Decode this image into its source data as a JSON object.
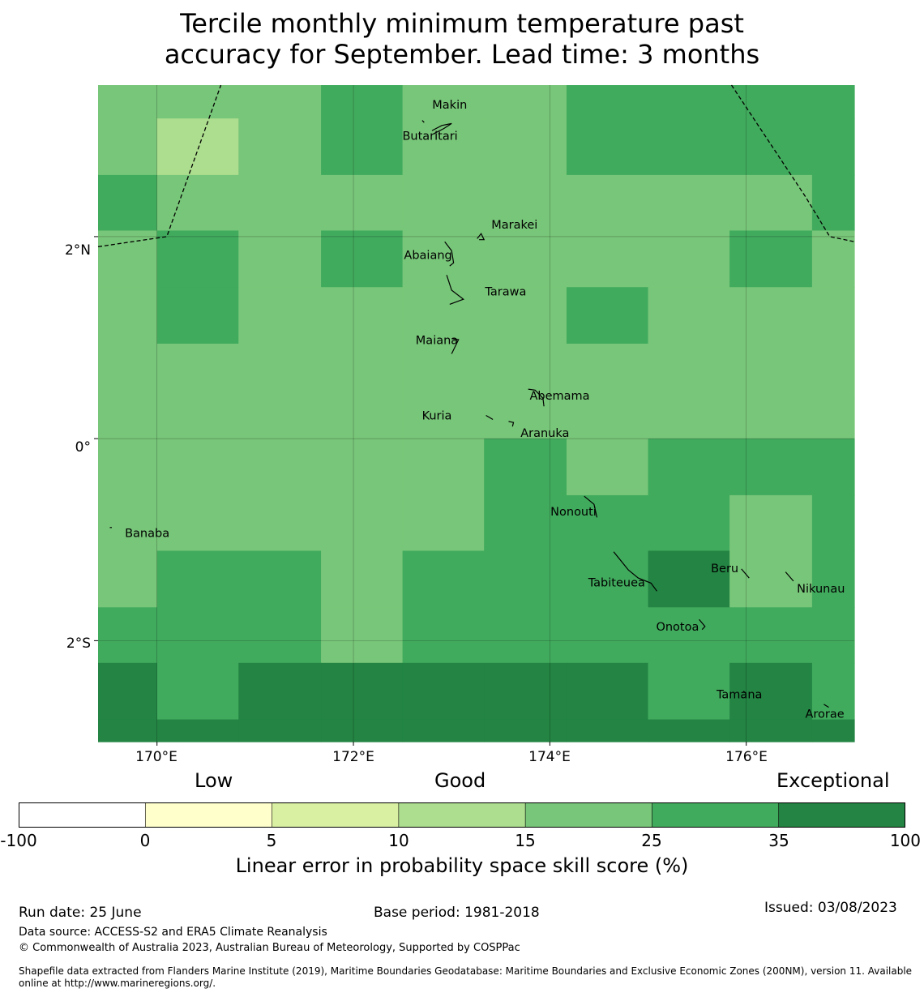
{
  "title_lines": [
    "Tercile monthly minimum temperature past",
    "accuracy for September. Lead time: 3 months"
  ],
  "map": {
    "lon_range": [
      169.4,
      177.1
    ],
    "lat_range": [
      -3.0,
      3.5
    ],
    "x_ticks": [
      {
        "value": 170,
        "label": "170°E"
      },
      {
        "value": 172,
        "label": "172°E"
      },
      {
        "value": 174,
        "label": "174°E"
      },
      {
        "value": 176,
        "label": "176°E"
      }
    ],
    "y_ticks": [
      {
        "value": 2,
        "label": "2°N"
      },
      {
        "value": 0,
        "label": "0°"
      },
      {
        "value": -2,
        "label": "2°S"
      }
    ],
    "grid": true,
    "class_colors": [
      "#ffffff",
      "#ffffcc",
      "#d9f0a3",
      "#addd8e",
      "#78c679",
      "#41ab5d",
      "#238443"
    ],
    "cell_columns_lon": [
      169.4,
      170.0,
      170.83,
      171.67,
      172.5,
      173.33,
      174.17,
      175.0,
      175.83,
      176.67,
      177.1
    ],
    "cell_rows_lat": [
      3.5,
      3.17,
      2.61,
      2.06,
      1.5,
      0.94,
      0.39,
      0,
      -0.56,
      -1.11,
      -1.67,
      -2.22,
      -2.78,
      -3.0
    ],
    "cell_classes": [
      [
        4,
        4,
        4,
        5,
        4,
        4,
        5,
        5,
        5,
        5
      ],
      [
        4,
        3,
        4,
        5,
        4,
        4,
        5,
        5,
        5,
        5
      ],
      [
        5,
        4,
        4,
        4,
        4,
        4,
        4,
        4,
        4,
        5
      ],
      [
        4,
        5,
        4,
        5,
        4,
        4,
        4,
        4,
        5,
        4
      ],
      [
        4,
        5,
        4,
        4,
        4,
        4,
        5,
        4,
        4,
        4
      ],
      [
        4,
        4,
        4,
        4,
        4,
        4,
        4,
        4,
        4,
        4
      ],
      [
        4,
        4,
        4,
        4,
        4,
        4,
        4,
        4,
        4,
        4
      ],
      [
        4,
        4,
        4,
        4,
        4,
        5,
        4,
        5,
        5,
        5
      ],
      [
        4,
        4,
        4,
        4,
        4,
        5,
        5,
        5,
        4,
        5
      ],
      [
        4,
        5,
        5,
        4,
        5,
        5,
        5,
        6,
        4,
        5
      ],
      [
        5,
        5,
        5,
        4,
        5,
        5,
        5,
        5,
        5,
        5
      ],
      [
        6,
        5,
        6,
        6,
        6,
        6,
        6,
        5,
        6,
        5
      ],
      [
        6,
        6,
        6,
        6,
        6,
        6,
        6,
        6,
        6,
        6
      ]
    ],
    "boundary_lines": [
      [
        [
          169.4,
          1.9
        ],
        [
          170.1,
          2.0
        ],
        [
          170.65,
          3.5
        ]
      ],
      [
        [
          175.85,
          3.5
        ],
        [
          176.6,
          2.4
        ],
        [
          176.85,
          2.0
        ],
        [
          177.1,
          1.95
        ]
      ]
    ],
    "islands": [
      {
        "name": "Makin",
        "lon": 172.98,
        "lat": 3.3,
        "outline": [
          [
            172.7,
            3.15
          ],
          [
            172.72,
            3.13
          ]
        ]
      },
      {
        "name": "Butaritari",
        "lon": 172.78,
        "lat": 2.99,
        "outline": [
          [
            172.8,
            3.05
          ],
          [
            172.9,
            3.1
          ],
          [
            173.0,
            3.12
          ],
          [
            172.92,
            3.07
          ],
          [
            172.82,
            3.02
          ]
        ]
      },
      {
        "name": "Marakei",
        "lon": 173.64,
        "lat": 2.11,
        "outline": [
          [
            173.26,
            1.98
          ],
          [
            173.3,
            2.03
          ],
          [
            173.33,
            1.97
          ],
          [
            173.28,
            1.97
          ]
        ]
      },
      {
        "name": "Abaiang",
        "lon": 172.76,
        "lat": 1.81,
        "outline": [
          [
            172.93,
            1.95
          ],
          [
            173.0,
            1.86
          ],
          [
            173.02,
            1.74
          ],
          [
            172.98,
            1.71
          ]
        ]
      },
      {
        "name": "Tarawa",
        "lon": 173.55,
        "lat": 1.45,
        "outline": [
          [
            172.95,
            1.62
          ],
          [
            173.0,
            1.47
          ],
          [
            173.12,
            1.38
          ],
          [
            172.98,
            1.33
          ]
        ]
      },
      {
        "name": "Maiana",
        "lon": 172.85,
        "lat": 0.97,
        "outline": [
          [
            173.0,
            0.99
          ],
          [
            173.07,
            0.98
          ],
          [
            173.0,
            0.84
          ]
        ]
      },
      {
        "name": "Abemama",
        "lon": 174.1,
        "lat": 0.42,
        "outline": [
          [
            173.78,
            0.49
          ],
          [
            173.85,
            0.48
          ],
          [
            173.93,
            0.4
          ],
          [
            173.94,
            0.32
          ]
        ]
      },
      {
        "name": "Kuria",
        "lon": 172.85,
        "lat": 0.22,
        "outline": [
          [
            173.35,
            0.23
          ],
          [
            173.42,
            0.19
          ]
        ]
      },
      {
        "name": "Aranuka",
        "lon": 173.95,
        "lat": 0.05,
        "outline": [
          [
            173.58,
            0.17
          ],
          [
            173.63,
            0.16
          ],
          [
            173.62,
            0.12
          ]
        ]
      },
      {
        "name": "Nonouti",
        "lon": 174.24,
        "lat": -0.73,
        "outline": [
          [
            174.35,
            -0.57
          ],
          [
            174.45,
            -0.65
          ],
          [
            174.48,
            -0.78
          ]
        ]
      },
      {
        "name": "Banaba",
        "lon": 169.9,
        "lat": -0.94,
        "outline": [
          [
            169.52,
            -0.88
          ],
          [
            169.54,
            -0.88
          ]
        ]
      },
      {
        "name": "Tabiteuea",
        "lon": 174.68,
        "lat": -1.43,
        "outline": [
          [
            174.65,
            -1.12
          ],
          [
            174.8,
            -1.3
          ],
          [
            174.9,
            -1.38
          ],
          [
            175.03,
            -1.43
          ],
          [
            175.09,
            -1.51
          ]
        ]
      },
      {
        "name": "Beru",
        "lon": 175.78,
        "lat": -1.29,
        "outline": [
          [
            175.95,
            -1.29
          ],
          [
            176.03,
            -1.38
          ]
        ]
      },
      {
        "name": "Nikunau",
        "lon": 176.76,
        "lat": -1.49,
        "outline": [
          [
            176.4,
            -1.32
          ],
          [
            176.48,
            -1.41
          ]
        ]
      },
      {
        "name": "Onotoa",
        "lon": 175.3,
        "lat": -1.87,
        "outline": [
          [
            175.52,
            -1.79
          ],
          [
            175.58,
            -1.86
          ],
          [
            175.55,
            -1.89
          ]
        ]
      },
      {
        "name": "Tamana",
        "lon": 175.93,
        "lat": -2.54,
        "outline": [
          [
            175.97,
            -2.5
          ],
          [
            176.0,
            -2.52
          ]
        ]
      },
      {
        "name": "Arorae",
        "lon": 176.8,
        "lat": -2.73,
        "outline": [
          [
            176.79,
            -2.63
          ],
          [
            176.84,
            -2.66
          ]
        ]
      }
    ]
  },
  "legend": {
    "categories": [
      "Low",
      "Good",
      "Exceptional"
    ],
    "bounds": [
      "-100",
      "0",
      "5",
      "10",
      "15",
      "25",
      "35",
      "100"
    ],
    "colors": [
      "#ffffff",
      "#ffffcc",
      "#d9f0a3",
      "#addd8e",
      "#78c679",
      "#41ab5d",
      "#238443"
    ],
    "title": "Linear error in probability space skill score (%)"
  },
  "footer": {
    "run_date": "Run date: 25 June",
    "base_period": "Base period: 1981-2018",
    "issued": "Issued: 03/08/2023",
    "data_source": "Data source: ACCESS-S2 and ERA5 Climate Reanalysis",
    "copyright": "© Commonwealth of Australia 2023, Australian Bureau of Meteorology, Supported by COSPPac",
    "shapefile_line1": "Shapefile data extracted from Flanders Marine Institute (2019), Maritime Boundaries Geodatabase: Maritime Boundaries and Exclusive Economic Zones (200NM), version 11. Available",
    "shapefile_line2": "online at http://www.marineregions.org/."
  }
}
